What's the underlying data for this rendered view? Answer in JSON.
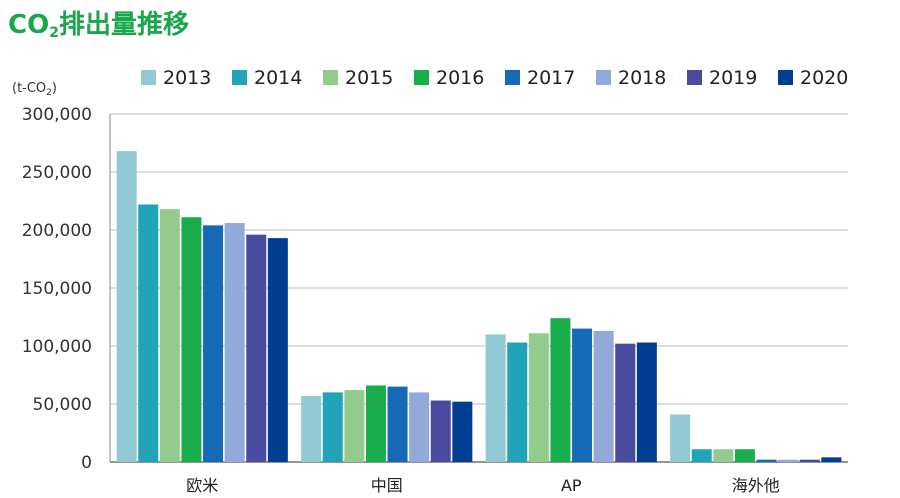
{
  "title_main": "CO",
  "title_sub": "2",
  "title_rest": "排出量推移",
  "chart_data": {
    "type": "bar",
    "title": "CO2排出量推移",
    "ylabel": "(t-CO2)",
    "xlabel": "",
    "ylim": [
      0,
      300000
    ],
    "yticks": [
      "0",
      "50,000",
      "100,000",
      "150,000",
      "200,000",
      "250,000",
      "300,000"
    ],
    "ytick_values": [
      0,
      50000,
      100000,
      150000,
      200000,
      250000,
      300000
    ],
    "categories": [
      "欧米",
      "中国",
      "AP",
      "海外他"
    ],
    "grid": true,
    "legend_position": "top",
    "series": [
      {
        "name": "2013",
        "color": "#93c9d4",
        "values": [
          268000,
          57000,
          110000,
          41000
        ]
      },
      {
        "name": "2014",
        "color": "#22a4b8",
        "values": [
          222000,
          60000,
          103000,
          11000
        ]
      },
      {
        "name": "2015",
        "color": "#92cb8c",
        "values": [
          218000,
          62000,
          111000,
          11000
        ]
      },
      {
        "name": "2016",
        "color": "#1aad4b",
        "values": [
          211000,
          66000,
          124000,
          11000
        ]
      },
      {
        "name": "2017",
        "color": "#1669b4",
        "values": [
          204000,
          65000,
          115000,
          2000
        ]
      },
      {
        "name": "2018",
        "color": "#93a9d9",
        "values": [
          206000,
          60000,
          113000,
          2000
        ]
      },
      {
        "name": "2019",
        "color": "#4a4a9e",
        "values": [
          196000,
          53000,
          102000,
          2000
        ]
      },
      {
        "name": "2020",
        "color": "#003e91",
        "values": [
          193000,
          52000,
          103000,
          4000
        ]
      }
    ]
  }
}
